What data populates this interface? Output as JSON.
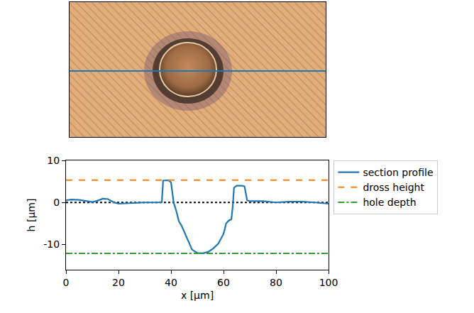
{
  "chart_data": {
    "type": "line",
    "xlabel": "x [μm]",
    "ylabel": "h [μm]",
    "xlim": [
      0,
      100
    ],
    "ylim": [
      -16,
      10
    ],
    "xticks": [
      0,
      20,
      40,
      60,
      80,
      100
    ],
    "yticks": [
      -10,
      0,
      10
    ],
    "grid": false,
    "legend": "right",
    "zero_line": 0,
    "series": [
      {
        "name": "section profile",
        "color": "#1f77b4",
        "line_style": "solid",
        "x": [
          0,
          2,
          5,
          8,
          10,
          12,
          14,
          16,
          18,
          20,
          25,
          30,
          35,
          36.5,
          37,
          39,
          40,
          41,
          42,
          43,
          44,
          45,
          46,
          47,
          48,
          50,
          52,
          54,
          56,
          58,
          60,
          61,
          62,
          63,
          63.5,
          64,
          65,
          67,
          68,
          69,
          70,
          75,
          80,
          85,
          90,
          95,
          100
        ],
        "values": [
          0.5,
          0.7,
          0.6,
          0.3,
          0.1,
          0.4,
          0.9,
          0.8,
          0.1,
          -0.3,
          -0.1,
          0,
          0,
          0.1,
          5.2,
          5.3,
          4.8,
          0,
          -2,
          -4.5,
          -5.5,
          -7,
          -8.5,
          -10,
          -11.2,
          -12,
          -12.1,
          -11.8,
          -11,
          -9.8,
          -7.5,
          -5,
          -4.3,
          -4,
          -1,
          3.5,
          4,
          4,
          3.8,
          0.5,
          0.3,
          0.3,
          0,
          0.2,
          0.2,
          0,
          -0.3
        ]
      },
      {
        "name": "dross height",
        "color": "#ff7f0e",
        "line_style": "dash",
        "type": "hline",
        "value": 5.3
      },
      {
        "name": "hole depth",
        "color": "#2ca02c",
        "line_style": "dashdot",
        "type": "hline",
        "value": -12.1
      }
    ]
  }
}
